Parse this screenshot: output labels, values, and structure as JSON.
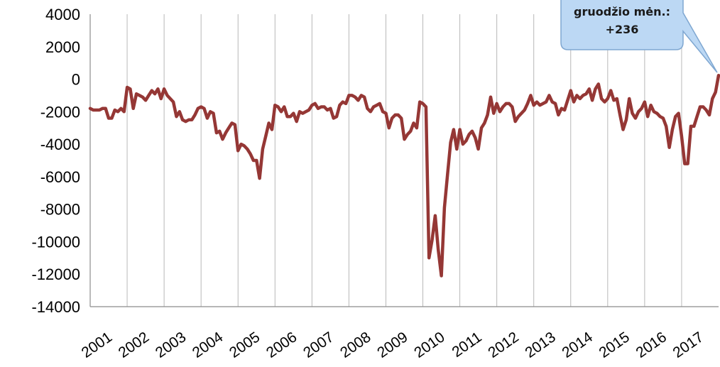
{
  "chart_data": {
    "type": "line",
    "title": "",
    "xlabel": "",
    "ylabel": "",
    "ylim": [
      -14000,
      4000
    ],
    "y_ticks": [
      "4000",
      "2000",
      "0",
      "-2000",
      "-4000",
      "-6000",
      "-8000",
      "-10000",
      "-12000",
      "-14000"
    ],
    "x_ticks": [
      "2001",
      "2002",
      "2003",
      "2004",
      "2005",
      "2006",
      "2007",
      "2008",
      "2009",
      "2010",
      "2011",
      "2012",
      "2013",
      "2014",
      "2015",
      "2016",
      "2017"
    ],
    "grid": "vertical",
    "line_color": "#953735",
    "callout": {
      "line1": "gruodžio mėn.:",
      "line2": "+236",
      "bg": "#bcd8f4",
      "border": "#7fa7d1"
    },
    "series": [
      {
        "values": [
          -1800,
          -1900,
          -1900,
          -1900,
          -1800,
          -1800,
          -2400,
          -2400,
          -1900,
          -2000,
          -1800,
          -2000,
          -500,
          -600,
          -1800,
          -900,
          -1000,
          -1100,
          -1300,
          -1000,
          -700,
          -900,
          -600,
          -1200,
          -600,
          -1000,
          -1200,
          -1400,
          -2300,
          -2000,
          -2500,
          -2600,
          -2500,
          -2500,
          -2200,
          -1800,
          -1700,
          -1800,
          -2400,
          -2000,
          -2100,
          -3300,
          -3200,
          -3700,
          -3300,
          -3000,
          -2700,
          -2800,
          -4400,
          -4000,
          -4100,
          -4300,
          -4600,
          -5000,
          -5000,
          -6100,
          -4300,
          -3500,
          -2700,
          -3100,
          -1600,
          -1700,
          -2000,
          -1700,
          -2300,
          -2300,
          -2100,
          -2600,
          -2000,
          -2100,
          -2000,
          -1900,
          -1600,
          -1500,
          -1800,
          -1700,
          -1700,
          -1900,
          -1800,
          -2400,
          -2300,
          -1600,
          -1400,
          -1500,
          -1000,
          -1000,
          -1100,
          -1300,
          -1000,
          -1100,
          -1800,
          -2000,
          -1700,
          -1600,
          -1500,
          -2000,
          -2100,
          -3000,
          -2400,
          -2200,
          -2200,
          -2400,
          -3700,
          -3400,
          -3200,
          -2700,
          -3000,
          -1400,
          -1500,
          -1700,
          -11000,
          -9900,
          -8400,
          -10500,
          -12100,
          -7900,
          -5900,
          -3900,
          -3100,
          -4300,
          -3100,
          -4000,
          -3800,
          -3400,
          -3200,
          -3600,
          -4300,
          -3000,
          -2700,
          -2200,
          -1100,
          -2100,
          -1500,
          -2000,
          -1700,
          -1500,
          -1500,
          -1700,
          -2600,
          -2300,
          -2100,
          -1900,
          -1500,
          -1000,
          -1600,
          -1400,
          -1600,
          -1500,
          -1400,
          -1000,
          -1400,
          -1500,
          -2200,
          -1800,
          -1900,
          -1300,
          -700,
          -1400,
          -1000,
          -1200,
          -1000,
          -900,
          -600,
          -1300,
          -600,
          -300,
          -1200,
          -1400,
          -1200,
          -700,
          -1300,
          -1200,
          -2200,
          -3100,
          -2500,
          -1200,
          -2100,
          -2400,
          -2000,
          -1800,
          -1400,
          -2300,
          -1600,
          -2000,
          -2100,
          -2300,
          -2400,
          -2900,
          -4200,
          -3100,
          -2300,
          -2100,
          -3500,
          -5200,
          -5200,
          -2900,
          -2900,
          -2300,
          -1700,
          -1700,
          -1900,
          -2200,
          -1200,
          -800,
          236
        ]
      }
    ]
  }
}
